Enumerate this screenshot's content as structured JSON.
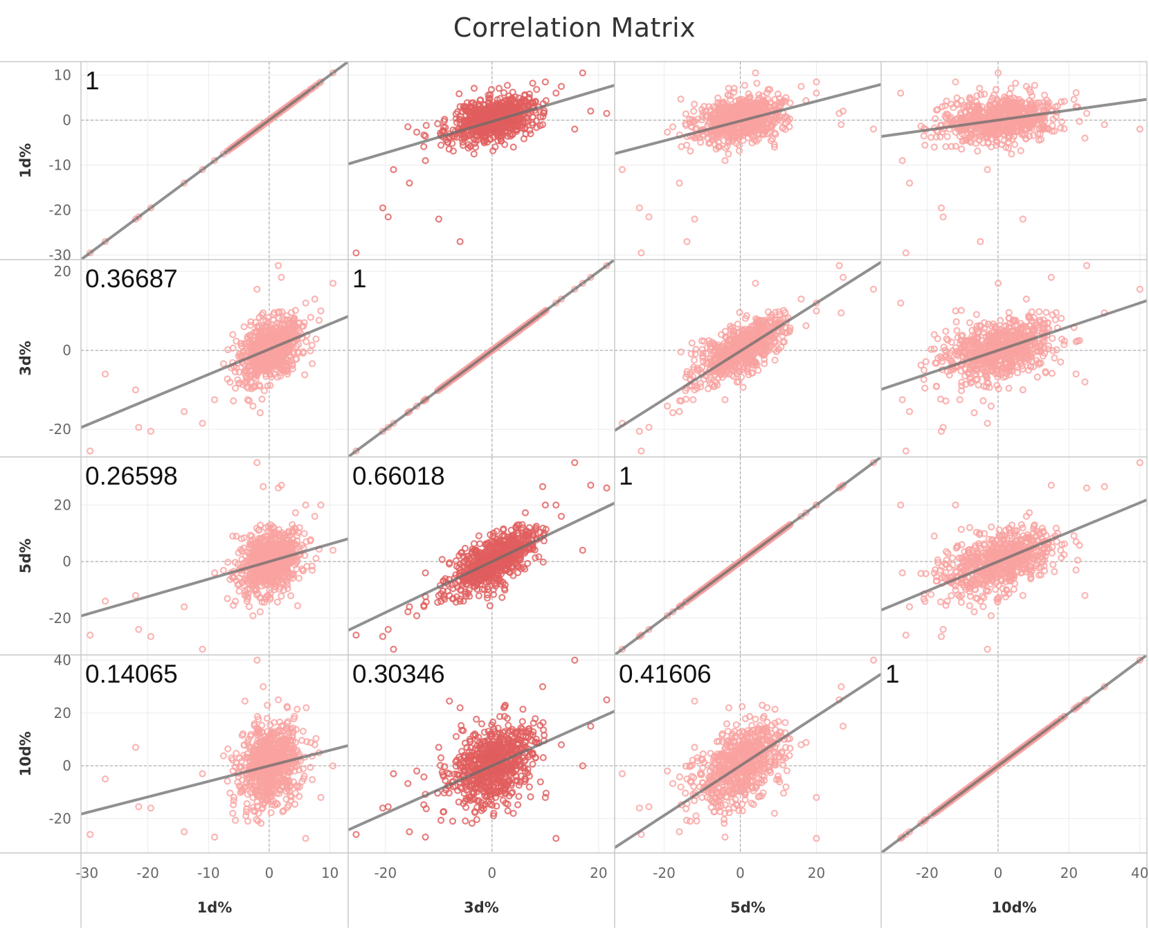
{
  "title": "Correlation Matrix",
  "colors": {
    "point_light": "#F9A3A0",
    "point_dark": "#E15E5E",
    "trend": "#6B6B6B",
    "grid": "#EBEBEB",
    "zero_line": "#9A9A9A",
    "border": "#C8C8C8"
  },
  "chart_data": {
    "type": "scatter",
    "title": "Correlation Matrix",
    "variables": [
      "1d%",
      "3d%",
      "5d%",
      "10d%"
    ],
    "axes": {
      "1d%": {
        "range": [
          -31,
          13
        ],
        "ticks": [
          -30,
          -20,
          -10,
          0,
          10
        ],
        "tick_labels": [
          "-30",
          "-20",
          "-10",
          "0",
          "10"
        ]
      },
      "3d%": {
        "range": [
          -27,
          23
        ],
        "ticks": [
          -20,
          0,
          20
        ],
        "tick_labels": [
          "-20",
          "0",
          "20"
        ]
      },
      "5d%": {
        "range": [
          -33,
          37
        ],
        "ticks": [
          -20,
          0,
          20
        ],
        "tick_labels": [
          "-20",
          "0",
          "20"
        ]
      },
      "10d%": {
        "range": [
          -33,
          42
        ],
        "ticks": [
          -20,
          0,
          20,
          40
        ],
        "tick_labels": [
          "-20",
          "0",
          "20",
          "40"
        ]
      }
    },
    "correlation_labels": [
      [
        "1",
        "",
        "",
        ""
      ],
      [
        "0.36687",
        "1",
        "",
        ""
      ],
      [
        "0.26598",
        "0.66018",
        "1",
        ""
      ],
      [
        "0.14065",
        "0.30346",
        "0.41606",
        "1"
      ]
    ],
    "correlations": [
      [
        1,
        0.36687,
        0.26598,
        0.14065
      ],
      [
        0.36687,
        1,
        0.66018,
        0.30346
      ],
      [
        0.26598,
        0.66018,
        1,
        0.41606
      ],
      [
        0.14065,
        0.30346,
        0.41606,
        1
      ]
    ],
    "trend_lines": [
      [
        {
          "slope": 1,
          "intercept": 0
        },
        {
          "slope": 0.35,
          "intercept": -0.3
        },
        {
          "slope": 0.22,
          "intercept": -0.2
        },
        {
          "slope": 0.11,
          "intercept": 0
        }
      ],
      [
        {
          "slope": 0.64,
          "intercept": 0.3
        },
        {
          "slope": 1,
          "intercept": 0
        },
        {
          "slope": 0.61,
          "intercept": -0.2
        },
        {
          "slope": 0.3,
          "intercept": 0
        }
      ],
      [
        {
          "slope": 0.62,
          "intercept": 0
        },
        {
          "slope": 0.9,
          "intercept": 0
        },
        {
          "slope": 1,
          "intercept": 0
        },
        {
          "slope": 0.52,
          "intercept": 0
        }
      ],
      [
        {
          "slope": 0.59,
          "intercept": 0
        },
        {
          "slope": 0.9,
          "intercept": 0
        },
        {
          "slope": 0.94,
          "intercept": 0
        },
        {
          "slope": 1,
          "intercept": 0
        }
      ]
    ],
    "x_axis_labels": [
      "1d%",
      "3d%",
      "5d%",
      "10d%"
    ],
    "y_axis_labels": [
      "1d%",
      "3d%",
      "5d%",
      "10d%"
    ],
    "grid": true,
    "legend": "none",
    "sample_points": {
      "note_units": "data units; columns = [1d%, 3d%, 5d%, 10d%]",
      "outliers": [
        [
          -29.5,
          -25.5,
          -26,
          -26
        ],
        [
          -21.5,
          -19.5,
          -24,
          -15.5
        ],
        [
          -19.5,
          -20.5,
          -26.5,
          -16
        ],
        [
          -14,
          -15.5,
          -16,
          -25
        ],
        [
          -11,
          -18.5,
          -31,
          -3
        ],
        [
          -9,
          -12.5,
          -4,
          -27
        ],
        [
          -4,
          -8,
          -12,
          24.5
        ],
        [
          -2,
          15.5,
          35,
          40
        ],
        [
          -1,
          9.5,
          26.5,
          30
        ],
        [
          1.5,
          21.5,
          26,
          25
        ],
        [
          2,
          18.5,
          27,
          15
        ],
        [
          6,
          12,
          20,
          -27.5
        ],
        [
          7.5,
          13,
          16,
          8
        ],
        [
          8.5,
          10,
          20,
          -12
        ],
        [
          10.5,
          17,
          4,
          0
        ],
        [
          -27,
          -6,
          -14,
          -5
        ],
        [
          -22,
          -10,
          -12,
          7
        ],
        [
          -6,
          4,
          9,
          -18
        ],
        [
          3,
          -6,
          -3,
          22
        ],
        [
          5,
          7,
          12,
          -8
        ]
      ]
    }
  }
}
